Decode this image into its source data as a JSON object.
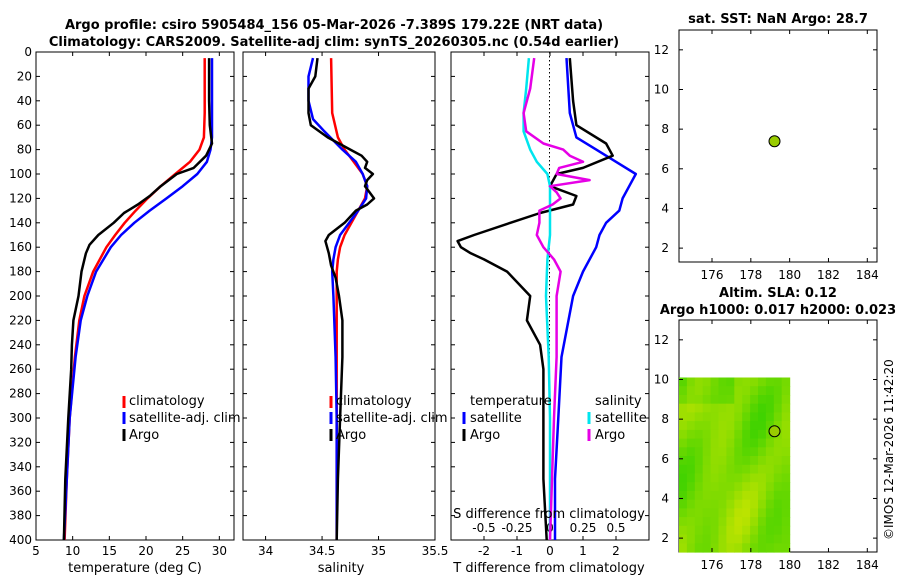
{
  "title": {
    "line1": "Argo profile: csiro 5905484_156 05-Mar-2026 -7.389S 179.22E (NRT data)",
    "line2": "Climatology: CARS2009. Satellite-adj clim: synTS_20260305.nc (0.54d earlier)"
  },
  "watermark": "©IMOS 12-Mar-2026 11:42:20",
  "colors": {
    "climatology": "#ff0000",
    "satellite": "#0000ff",
    "argo": "#000000",
    "sat_diff": "#00e5ee",
    "argo_diff": "#e600e6",
    "marker": "#99cc00"
  },
  "chart_data": [
    {
      "type": "line",
      "id": "temperature",
      "xlabel": "temperature (deg C)",
      "ylabel": "",
      "xlim": [
        5,
        32
      ],
      "ylim": [
        0,
        400
      ],
      "xticks": [
        "5",
        "10",
        "15",
        "20",
        "25",
        "30"
      ],
      "yticks": [
        "0",
        "20",
        "40",
        "60",
        "80",
        "100",
        "120",
        "140",
        "160",
        "180",
        "200",
        "220",
        "240",
        "260",
        "280",
        "300",
        "320",
        "340",
        "360",
        "380",
        "400"
      ],
      "legend": [
        "climatology",
        "satellite-adj. clim",
        "Argo"
      ],
      "series": [
        {
          "name": "climatology",
          "depth": [
            5,
            50,
            70,
            80,
            90,
            100,
            110,
            120,
            130,
            140,
            150,
            160,
            180,
            200,
            220,
            250,
            300,
            350,
            400
          ],
          "values": [
            28.0,
            28.0,
            27.9,
            27.3,
            26.0,
            24.0,
            22.0,
            20.2,
            18.6,
            17.1,
            15.8,
            14.6,
            12.8,
            11.6,
            10.9,
            10.3,
            9.6,
            9.2,
            8.9
          ]
        },
        {
          "name": "satellite-adj. clim",
          "depth": [
            5,
            50,
            70,
            80,
            90,
            100,
            110,
            120,
            130,
            140,
            150,
            160,
            180,
            200,
            220,
            250,
            300,
            350,
            400
          ],
          "values": [
            29.0,
            29.0,
            29.0,
            28.8,
            28.3,
            27.0,
            25.0,
            22.8,
            20.5,
            18.4,
            16.6,
            15.2,
            13.2,
            12.0,
            11.1,
            10.4,
            9.6,
            9.2,
            8.8
          ]
        },
        {
          "name": "Argo",
          "depth": [
            5,
            40,
            60,
            75,
            85,
            95,
            100,
            110,
            118,
            125,
            132,
            140,
            150,
            158,
            165,
            180,
            200,
            220,
            240,
            260,
            300,
            350,
            400
          ],
          "values": [
            28.6,
            28.6,
            28.7,
            29.0,
            28.2,
            26.5,
            24.2,
            22.0,
            20.5,
            18.9,
            17.0,
            15.6,
            13.5,
            12.3,
            11.8,
            11.2,
            10.8,
            10.1,
            9.9,
            9.8,
            9.4,
            9.0,
            8.8
          ]
        }
      ]
    },
    {
      "type": "line",
      "id": "salinity",
      "xlabel": "salinity",
      "xlim": [
        33.8,
        35.5
      ],
      "ylim": [
        0,
        400
      ],
      "xticks": [
        "34",
        "34.5",
        "35",
        "35.5"
      ],
      "legend": [
        "climatology",
        "satellite-adj. clim",
        "Argo"
      ],
      "series": [
        {
          "name": "climatology",
          "depth": [
            5,
            50,
            70,
            80,
            90,
            100,
            110,
            120,
            130,
            140,
            150,
            160,
            170,
            180,
            200,
            250,
            300,
            400
          ],
          "values": [
            34.58,
            34.59,
            34.64,
            34.7,
            34.78,
            34.86,
            34.9,
            34.88,
            34.82,
            34.76,
            34.7,
            34.66,
            34.64,
            34.63,
            34.63,
            34.63,
            34.63,
            34.63
          ]
        },
        {
          "name": "satellite-adj. clim",
          "depth": [
            5,
            20,
            40,
            55,
            65,
            80,
            90,
            100,
            110,
            120,
            130,
            140,
            150,
            160,
            170,
            180,
            200,
            250,
            300,
            400
          ],
          "values": [
            34.42,
            34.38,
            34.38,
            34.42,
            34.52,
            34.68,
            34.8,
            34.86,
            34.9,
            34.89,
            34.82,
            34.74,
            34.66,
            34.62,
            34.6,
            34.59,
            34.6,
            34.62,
            34.63,
            34.63
          ]
        },
        {
          "name": "Argo",
          "depth": [
            5,
            20,
            30,
            50,
            60,
            70,
            80,
            85,
            90,
            95,
            100,
            105,
            110,
            115,
            120,
            125,
            130,
            140,
            150,
            155,
            165,
            175,
            185,
            200,
            220,
            250,
            300,
            350,
            400
          ],
          "values": [
            34.46,
            34.44,
            34.38,
            34.38,
            34.4,
            34.55,
            34.75,
            34.85,
            34.9,
            34.88,
            34.95,
            34.9,
            34.88,
            34.92,
            34.96,
            34.9,
            34.8,
            34.7,
            34.56,
            34.53,
            34.56,
            34.58,
            34.62,
            34.65,
            34.68,
            34.68,
            34.66,
            34.64,
            34.63
          ]
        }
      ]
    },
    {
      "type": "line",
      "id": "difference",
      "xlabel": "T difference from climatology",
      "xlim": [
        -3,
        3
      ],
      "ylim": [
        0,
        400
      ],
      "xticks": [
        "-2",
        "-1",
        "0",
        "1",
        "2"
      ],
      "secondary_axis_label": "S difference from climatology",
      "secondary_xlim": [
        -0.75,
        0.75
      ],
      "secondary_xticks": [
        "-0.5",
        "-0.25",
        "0",
        "0.25",
        "0.5"
      ],
      "legend": [
        "temperature",
        "satellite",
        "Argo",
        "salinity",
        "satellite",
        "Argo"
      ],
      "series": [
        {
          "name": "T satellite",
          "depth": [
            5,
            50,
            70,
            80,
            90,
            100,
            110,
            120,
            130,
            140,
            150,
            160,
            180,
            200,
            250,
            300,
            350,
            400
          ],
          "values": [
            0.5,
            0.6,
            0.8,
            1.4,
            2.0,
            2.6,
            2.4,
            2.2,
            2.1,
            1.7,
            1.5,
            1.4,
            1.0,
            0.7,
            0.35,
            0.25,
            0.15,
            0.15
          ]
        },
        {
          "name": "T Argo",
          "depth": [
            5,
            40,
            60,
            75,
            85,
            95,
            100,
            110,
            118,
            125,
            132,
            140,
            150,
            155,
            160,
            165,
            170,
            180,
            200,
            220,
            240,
            260,
            300,
            350,
            400
          ],
          "values": [
            0.6,
            0.7,
            0.8,
            1.7,
            1.9,
            1.0,
            0.2,
            0.0,
            0.8,
            0.7,
            -0.3,
            -1.2,
            -2.3,
            -2.8,
            -2.7,
            -2.4,
            -2.0,
            -1.3,
            -0.6,
            -0.7,
            -0.3,
            -0.2,
            -0.2,
            -0.2,
            -0.1
          ]
        },
        {
          "name": "S satellite",
          "depth": [
            5,
            30,
            50,
            65,
            80,
            90,
            100,
            110,
            120,
            130,
            140,
            150,
            170,
            200,
            250,
            300,
            400
          ],
          "values": [
            -0.16,
            -0.18,
            -0.2,
            -0.2,
            -0.15,
            -0.1,
            -0.02,
            0.0,
            0.0,
            0.0,
            0.0,
            0.0,
            -0.02,
            -0.03,
            -0.01,
            0.0,
            0.0
          ]
        },
        {
          "name": "S Argo",
          "depth": [
            5,
            30,
            50,
            65,
            75,
            80,
            85,
            90,
            95,
            100,
            105,
            110,
            115,
            120,
            125,
            130,
            140,
            150,
            160,
            170,
            180,
            200,
            220,
            250,
            300,
            400
          ],
          "values": [
            -0.12,
            -0.15,
            -0.2,
            -0.18,
            -0.05,
            0.1,
            0.15,
            0.25,
            0.07,
            0.05,
            0.3,
            0.0,
            0.05,
            0.08,
            0.02,
            -0.08,
            -0.08,
            -0.1,
            -0.05,
            0.03,
            0.08,
            0.05,
            0.05,
            0.05,
            0.03,
            0.0
          ]
        }
      ]
    },
    {
      "type": "scatter",
      "id": "sst_map",
      "title": "sat. SST: NaN Argo: 28.7",
      "xlim": [
        174.3,
        184.5
      ],
      "ylim": [
        1.3,
        13.0
      ],
      "xticks": [
        "176",
        "178",
        "180",
        "182",
        "184"
      ],
      "yticks": [
        "2",
        "4",
        "6",
        "8",
        "10",
        "12"
      ],
      "points": [
        {
          "x": 179.22,
          "y": 7.389
        }
      ]
    },
    {
      "type": "heatmap",
      "id": "sla_map",
      "title_line1": "Altim. SLA: 0.12",
      "title_line2": "Argo h1000: 0.017 h2000: 0.023",
      "xlim": [
        174.3,
        184.5
      ],
      "ylim": [
        1.3,
        13.0
      ],
      "xticks": [
        "176",
        "178",
        "180",
        "182",
        "184"
      ],
      "yticks": [
        "2",
        "4",
        "6",
        "8",
        "10",
        "12"
      ],
      "field_extent": {
        "lon": [
          174.3,
          180.0
        ],
        "lat": [
          1.3,
          10.1
        ]
      },
      "points": [
        {
          "x": 179.22,
          "y": 7.389
        }
      ]
    }
  ]
}
